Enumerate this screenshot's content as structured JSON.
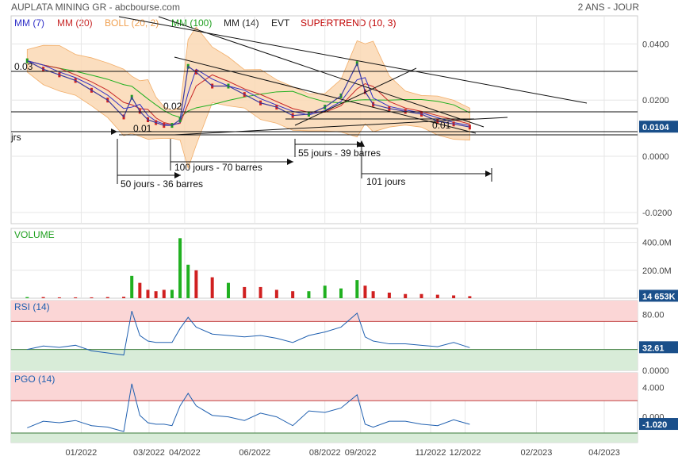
{
  "header": {
    "title": "AUPLATA MINING GR - abcbourse.com",
    "period": "2 ANS - JOUR",
    "legend": [
      {
        "label": "MM (7)",
        "color": "#3030c8"
      },
      {
        "label": "MM (20)",
        "color": "#c82828"
      },
      {
        "label": "BOLL (20, 2)",
        "color": "#f0a050"
      },
      {
        "label": "MM (100)",
        "color": "#20a020"
      },
      {
        "label": "MM (14)",
        "color": "#222222"
      },
      {
        "label": "EVT",
        "color": "#222222"
      },
      {
        "label": "SUPERTREND (10, 3)",
        "color": "#c00000"
      }
    ]
  },
  "colors": {
    "price_line": "#3a3aa0",
    "candle_up": "#20a020",
    "candle_down": "#d02020",
    "boll_fill": "#fbd9b4",
    "boll_line": "#f0a050",
    "ma20": "#c82828",
    "ma100": "#20b020",
    "ma7": "#3030c8",
    "osc_line": "#2060b0",
    "zone_high": "#fbd6d6",
    "zone_low": "#d8ecd8",
    "tag_bg": "#1a4f8a",
    "volume_green": "#20b020",
    "volume_red": "#d02020"
  },
  "annotations": {
    "price_labels": [
      "0.03",
      "0.02",
      "0.01",
      "0.01"
    ],
    "left_cut": "jrs",
    "measures": [
      "50 jours - 36 barres",
      "100 jours - 70 barres",
      "55 jours - 39 barres",
      "101 jours"
    ]
  },
  "chart_data": [
    {
      "type": "line",
      "panel": "price",
      "title": "AUPLATA MINING GR - abcbourse.com",
      "x_ticks": [
        "01/2022",
        "03/2022",
        "04/2022",
        "06/2022",
        "08/2022",
        "09/2022",
        "11/2022",
        "12/2022",
        "02/2023",
        "04/2023"
      ],
      "y_ticks": [
        "0.0400",
        "0.0200",
        "0.0000",
        "-0.0200"
      ],
      "ylim": [
        -0.024,
        0.05
      ],
      "last_value": "0.0104",
      "grid": true,
      "series": [
        {
          "name": "MM (7)"
        },
        {
          "name": "MM (20)"
        },
        {
          "name": "BOLL (20, 2)"
        },
        {
          "name": "MM (100)"
        },
        {
          "name": "SUPERTREND (10, 3)"
        }
      ],
      "x": [
        "2021-11-15",
        "2021-11-29",
        "2021-12-13",
        "2021-12-27",
        "2022-01-10",
        "2022-01-24",
        "2022-02-07",
        "2022-02-14",
        "2022-02-21",
        "2022-02-28",
        "2022-03-07",
        "2022-03-14",
        "2022-03-21",
        "2022-03-28",
        "2022-04-04",
        "2022-04-11",
        "2022-04-25",
        "2022-05-09",
        "2022-05-23",
        "2022-06-06",
        "2022-06-20",
        "2022-07-04",
        "2022-07-18",
        "2022-08-01",
        "2022-08-15",
        "2022-08-29",
        "2022-09-05",
        "2022-09-12",
        "2022-09-26",
        "2022-10-10",
        "2022-10-24",
        "2022-11-07",
        "2022-11-21",
        "2022-12-05"
      ],
      "close": [
        0.034,
        0.031,
        0.029,
        0.027,
        0.0235,
        0.02,
        0.014,
        0.021,
        0.016,
        0.013,
        0.012,
        0.011,
        0.011,
        0.013,
        0.032,
        0.03,
        0.025,
        0.025,
        0.022,
        0.019,
        0.0175,
        0.0145,
        0.015,
        0.0175,
        0.0215,
        0.033,
        0.023,
        0.0185,
        0.017,
        0.016,
        0.015,
        0.0125,
        0.0115,
        0.0104
      ]
    },
    {
      "type": "bar",
      "panel": "volume",
      "title": "VOLUME",
      "y_ticks": [
        "400.0M",
        "200.0M"
      ],
      "ylim": [
        0,
        500
      ],
      "last_value": "14 653K",
      "x": [
        "2021-11-15",
        "2021-11-29",
        "2021-12-13",
        "2021-12-27",
        "2022-01-10",
        "2022-01-24",
        "2022-02-07",
        "2022-02-14",
        "2022-02-21",
        "2022-02-28",
        "2022-03-07",
        "2022-03-14",
        "2022-03-21",
        "2022-03-28",
        "2022-04-04",
        "2022-04-11",
        "2022-04-25",
        "2022-05-09",
        "2022-05-23",
        "2022-06-06",
        "2022-06-20",
        "2022-07-04",
        "2022-07-18",
        "2022-08-01",
        "2022-08-15",
        "2022-08-29",
        "2022-09-05",
        "2022-09-12",
        "2022-09-26",
        "2022-10-10",
        "2022-10-24",
        "2022-11-07",
        "2022-11-21",
        "2022-12-05"
      ],
      "values": [
        8,
        8,
        6,
        6,
        6,
        8,
        10,
        160,
        110,
        60,
        50,
        60,
        60,
        430,
        240,
        200,
        150,
        110,
        80,
        80,
        60,
        50,
        50,
        90,
        70,
        130,
        90,
        50,
        40,
        30,
        30,
        25,
        20,
        14.653
      ]
    },
    {
      "type": "line",
      "panel": "oscillator",
      "title": "RSI (14)",
      "y_ticks": [
        "80.00",
        "0.0000"
      ],
      "ylim": [
        0,
        100
      ],
      "zones": [
        70,
        30
      ],
      "last_value": "32.61",
      "x": [
        "2021-11-15",
        "2021-11-29",
        "2021-12-13",
        "2021-12-27",
        "2022-01-10",
        "2022-01-24",
        "2022-02-07",
        "2022-02-14",
        "2022-02-21",
        "2022-02-28",
        "2022-03-07",
        "2022-03-14",
        "2022-03-21",
        "2022-03-28",
        "2022-04-04",
        "2022-04-11",
        "2022-04-25",
        "2022-05-09",
        "2022-05-23",
        "2022-06-06",
        "2022-06-20",
        "2022-07-04",
        "2022-07-18",
        "2022-08-01",
        "2022-08-15",
        "2022-08-29",
        "2022-09-05",
        "2022-09-12",
        "2022-09-26",
        "2022-10-10",
        "2022-10-24",
        "2022-11-07",
        "2022-11-21",
        "2022-12-05"
      ],
      "values": [
        30,
        35,
        33,
        36,
        28,
        25,
        22,
        85,
        50,
        42,
        40,
        40,
        40,
        60,
        76,
        62,
        52,
        50,
        48,
        50,
        46,
        40,
        50,
        55,
        62,
        82,
        48,
        42,
        38,
        38,
        36,
        34,
        40,
        32.61
      ]
    },
    {
      "type": "line",
      "panel": "oscillator",
      "title": "PGO (14)",
      "y_ticks": [
        "4.000",
        "0.000"
      ],
      "ylim": [
        -3.5,
        6
      ],
      "zones": [
        2.2,
        -2.2
      ],
      "last_value": "-1.020",
      "x": [
        "2021-11-15",
        "2021-11-29",
        "2021-12-13",
        "2021-12-27",
        "2022-01-10",
        "2022-01-24",
        "2022-02-07",
        "2022-02-14",
        "2022-02-21",
        "2022-02-28",
        "2022-03-07",
        "2022-03-14",
        "2022-03-21",
        "2022-03-28",
        "2022-04-04",
        "2022-04-11",
        "2022-04-25",
        "2022-05-09",
        "2022-05-23",
        "2022-06-06",
        "2022-06-20",
        "2022-07-04",
        "2022-07-18",
        "2022-08-01",
        "2022-08-15",
        "2022-08-29",
        "2022-09-05",
        "2022-09-12",
        "2022-09-26",
        "2022-10-10",
        "2022-10-24",
        "2022-11-07",
        "2022-11-21",
        "2022-12-05"
      ],
      "values": [
        -1.5,
        -0.6,
        -0.8,
        -0.5,
        -1.2,
        -1.4,
        -2.0,
        4.5,
        0.2,
        -0.8,
        -1.0,
        -1.0,
        -1.2,
        1.5,
        3.2,
        1.5,
        0.2,
        0.0,
        -0.5,
        0.5,
        0.0,
        -1.2,
        0.8,
        0.6,
        1.2,
        3.0,
        -1.0,
        -1.4,
        -0.6,
        -0.6,
        -1.0,
        -1.2,
        -0.4,
        -1.02
      ]
    }
  ]
}
